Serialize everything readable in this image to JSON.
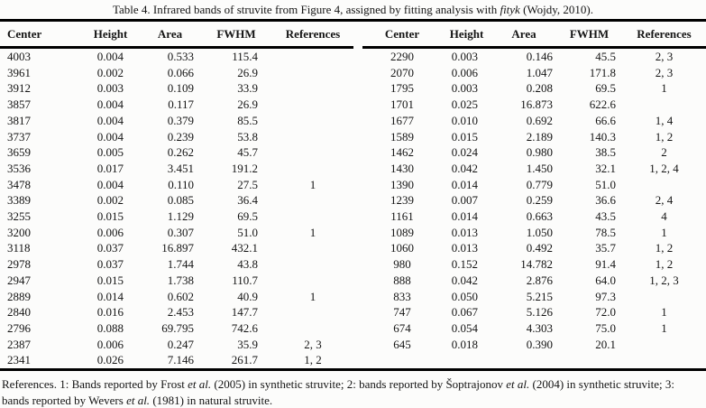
{
  "title": {
    "segments": [
      {
        "text": "Table 4. Infrared bands of struvite from Figure 4, assigned by fitting analysis with ",
        "italic": false
      },
      {
        "text": "fityk",
        "italic": true
      },
      {
        "text": " (Wojdy, 2010).",
        "italic": false
      }
    ]
  },
  "table": {
    "headers": [
      "Center",
      "Height",
      "Area",
      "FWHM",
      "References"
    ],
    "left_rows": [
      {
        "center": "4003",
        "height": "0.004",
        "area": "0.533",
        "fwhm": "115.4",
        "refs": ""
      },
      {
        "center": "3961",
        "height": "0.002",
        "area": "0.066",
        "fwhm": "26.9",
        "refs": ""
      },
      {
        "center": "3912",
        "height": "0.003",
        "area": "0.109",
        "fwhm": "33.9",
        "refs": ""
      },
      {
        "center": "3857",
        "height": "0.004",
        "area": "0.117",
        "fwhm": "26.9",
        "refs": ""
      },
      {
        "center": "3817",
        "height": "0.004",
        "area": "0.379",
        "fwhm": "85.5",
        "refs": ""
      },
      {
        "center": "3737",
        "height": "0.004",
        "area": "0.239",
        "fwhm": "53.8",
        "refs": ""
      },
      {
        "center": "3659",
        "height": "0.005",
        "area": "0.262",
        "fwhm": "45.7",
        "refs": ""
      },
      {
        "center": "3536",
        "height": "0.017",
        "area": "3.451",
        "fwhm": "191.2",
        "refs": ""
      },
      {
        "center": "3478",
        "height": "0.004",
        "area": "0.110",
        "fwhm": "27.5",
        "refs": "1"
      },
      {
        "center": "3389",
        "height": "0.002",
        "area": "0.085",
        "fwhm": "36.4",
        "refs": ""
      },
      {
        "center": "3255",
        "height": "0.015",
        "area": "1.129",
        "fwhm": "69.5",
        "refs": ""
      },
      {
        "center": "3200",
        "height": "0.006",
        "area": "0.307",
        "fwhm": "51.0",
        "refs": "1"
      },
      {
        "center": "3118",
        "height": "0.037",
        "area": "16.897",
        "fwhm": "432.1",
        "refs": ""
      },
      {
        "center": "2978",
        "height": "0.037",
        "area": "1.744",
        "fwhm": "43.8",
        "refs": ""
      },
      {
        "center": "2947",
        "height": "0.015",
        "area": "1.738",
        "fwhm": "110.7",
        "refs": ""
      },
      {
        "center": "2889",
        "height": "0.014",
        "area": "0.602",
        "fwhm": "40.9",
        "refs": "1"
      },
      {
        "center": "2840",
        "height": "0.016",
        "area": "2.453",
        "fwhm": "147.7",
        "refs": ""
      },
      {
        "center": "2796",
        "height": "0.088",
        "area": "69.795",
        "fwhm": "742.6",
        "refs": ""
      },
      {
        "center": "2387",
        "height": "0.006",
        "area": "0.247",
        "fwhm": "35.9",
        "refs": "2, 3"
      },
      {
        "center": "2341",
        "height": "0.026",
        "area": "7.146",
        "fwhm": "261.7",
        "refs": "1, 2"
      }
    ],
    "right_rows": [
      {
        "center": "2290",
        "height": "0.003",
        "area": "0.146",
        "fwhm": "45.5",
        "refs": "2, 3"
      },
      {
        "center": "2070",
        "height": "0.006",
        "area": "1.047",
        "fwhm": "171.8",
        "refs": "2, 3"
      },
      {
        "center": "1795",
        "height": "0.003",
        "area": "0.208",
        "fwhm": "69.5",
        "refs": "1"
      },
      {
        "center": "1701",
        "height": "0.025",
        "area": "16.873",
        "fwhm": "622.6",
        "refs": ""
      },
      {
        "center": "1677",
        "height": "0.010",
        "area": "0.692",
        "fwhm": "66.6",
        "refs": "1, 4"
      },
      {
        "center": "1589",
        "height": "0.015",
        "area": "2.189",
        "fwhm": "140.3",
        "refs": "1, 2"
      },
      {
        "center": "1462",
        "height": "0.024",
        "area": "0.980",
        "fwhm": "38.5",
        "refs": "2"
      },
      {
        "center": "1430",
        "height": "0.042",
        "area": "1.450",
        "fwhm": "32.1",
        "refs": "1, 2, 4"
      },
      {
        "center": "1390",
        "height": "0.014",
        "area": "0.779",
        "fwhm": "51.0",
        "refs": ""
      },
      {
        "center": "1239",
        "height": "0.007",
        "area": "0.259",
        "fwhm": "36.6",
        "refs": "2, 4"
      },
      {
        "center": "1161",
        "height": "0.014",
        "area": "0.663",
        "fwhm": "43.5",
        "refs": "4"
      },
      {
        "center": "1089",
        "height": "0.013",
        "area": "1.050",
        "fwhm": "78.5",
        "refs": "1"
      },
      {
        "center": "1060",
        "height": "0.013",
        "area": "0.492",
        "fwhm": "35.7",
        "refs": "1, 2"
      },
      {
        "center": "980",
        "height": "0.152",
        "area": "14.782",
        "fwhm": "91.4",
        "refs": "1, 2"
      },
      {
        "center": "888",
        "height": "0.042",
        "area": "2.876",
        "fwhm": "64.0",
        "refs": "1, 2, 3"
      },
      {
        "center": "833",
        "height": "0.050",
        "area": "5.215",
        "fwhm": "97.3",
        "refs": ""
      },
      {
        "center": "747",
        "height": "0.067",
        "area": "5.126",
        "fwhm": "72.0",
        "refs": "1"
      },
      {
        "center": "674",
        "height": "0.054",
        "area": "4.303",
        "fwhm": "75.0",
        "refs": "1"
      },
      {
        "center": "645",
        "height": "0.018",
        "area": "0.390",
        "fwhm": "20.1",
        "refs": ""
      }
    ]
  },
  "footnote": {
    "segments": [
      {
        "text": "References. 1: Bands reported by Frost ",
        "italic": false
      },
      {
        "text": "et al.",
        "italic": true
      },
      {
        "text": " (2005) in synthetic struvite; 2: bands reported by Šoptrajonov ",
        "italic": false
      },
      {
        "text": "et al.",
        "italic": true
      },
      {
        "text": " (2004) in synthetic struvite; 3: bands reported by Wevers ",
        "italic": false
      },
      {
        "text": "et al.",
        "italic": true
      },
      {
        "text": " (1981) in natural struvite.",
        "italic": false
      }
    ]
  },
  "colors": {
    "background": "#fcfcfb",
    "text": "#141414",
    "rule": "#000000"
  }
}
